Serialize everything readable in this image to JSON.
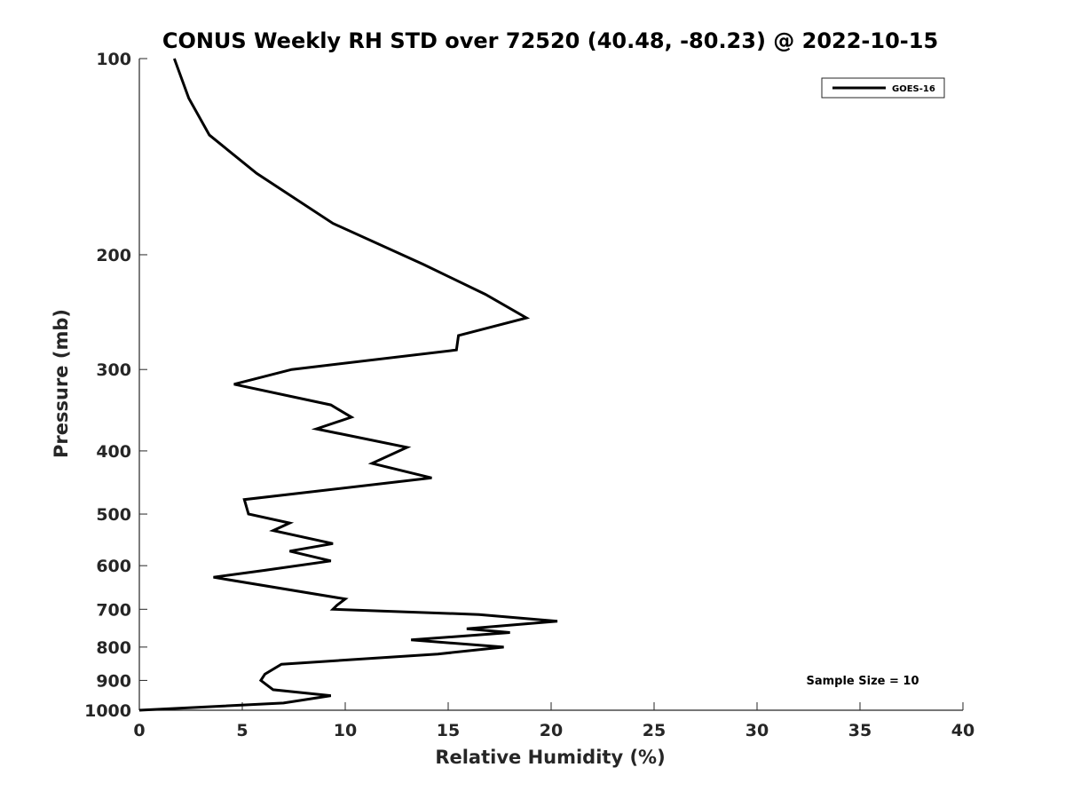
{
  "chart_data": {
    "type": "line",
    "title": "CONUS Weekly RH STD over 72520 (40.48, -80.23) @ 2022-10-15",
    "xlabel": "Relative Humidity (%)",
    "ylabel": "Pressure (mb)",
    "xlim": [
      0,
      40
    ],
    "ylim": [
      100,
      1000
    ],
    "y_scale": "log",
    "y_reversed": true,
    "x_ticks": [
      0,
      5,
      10,
      15,
      20,
      25,
      30,
      35,
      40
    ],
    "y_ticks": [
      100,
      200,
      300,
      400,
      500,
      600,
      700,
      800,
      900,
      1000
    ],
    "grid": false,
    "legend": {
      "placement": "top-right",
      "entries": [
        "GOES-16"
      ]
    },
    "annotation": "Sample Size = 10",
    "series": [
      {
        "name": "GOES-16",
        "color": "#000000",
        "points": [
          [
            1.7,
            100
          ],
          [
            2.4,
            115
          ],
          [
            3.4,
            131
          ],
          [
            5.7,
            150
          ],
          [
            9.4,
            179
          ],
          [
            13.8,
            207
          ],
          [
            16.8,
            230
          ],
          [
            18.8,
            250
          ],
          [
            15.5,
            266
          ],
          [
            15.4,
            280
          ],
          [
            7.4,
            300
          ],
          [
            4.6,
            316
          ],
          [
            9.3,
            340
          ],
          [
            10.3,
            355
          ],
          [
            8.6,
            370
          ],
          [
            13.0,
            395
          ],
          [
            11.3,
            418
          ],
          [
            14.2,
            440
          ],
          [
            5.1,
            475
          ],
          [
            5.3,
            500
          ],
          [
            7.3,
            516
          ],
          [
            6.5,
            530
          ],
          [
            9.4,
            555
          ],
          [
            7.3,
            570
          ],
          [
            9.3,
            590
          ],
          [
            6.1,
            610
          ],
          [
            3.6,
            625
          ],
          [
            10.0,
            675
          ],
          [
            9.6,
            690
          ],
          [
            9.4,
            700
          ],
          [
            16.5,
            713
          ],
          [
            20.3,
            730
          ],
          [
            15.9,
            750
          ],
          [
            18.0,
            760
          ],
          [
            13.2,
            780
          ],
          [
            17.7,
            800
          ],
          [
            14.5,
            820
          ],
          [
            6.9,
            850
          ],
          [
            6.1,
            880
          ],
          [
            5.9,
            900
          ],
          [
            6.2,
            915
          ],
          [
            6.5,
            930
          ],
          [
            9.3,
            950
          ],
          [
            7.0,
            975
          ],
          [
            0.0,
            1000
          ]
        ]
      }
    ]
  }
}
